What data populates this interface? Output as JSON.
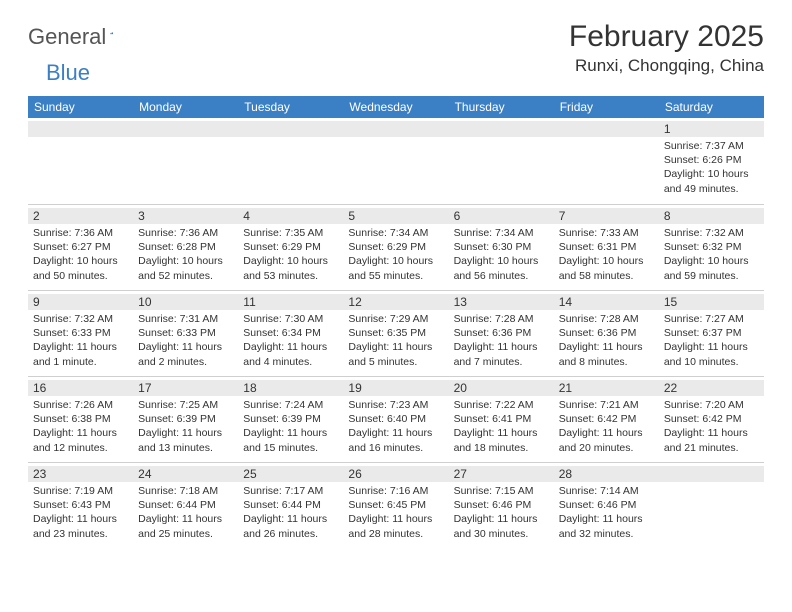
{
  "brand": {
    "name_gray": "General",
    "name_blue": "Blue"
  },
  "title": "February 2025",
  "location": "Runxi, Chongqing, China",
  "colors": {
    "header_bg": "#3b7fc4",
    "header_text": "#ffffff",
    "daynum_bg": "#eaeaea",
    "rule": "#cfcfcf",
    "body_text": "#333333",
    "page_bg": "#ffffff"
  },
  "day_names": [
    "Sunday",
    "Monday",
    "Tuesday",
    "Wednesday",
    "Thursday",
    "Friday",
    "Saturday"
  ],
  "weeks": [
    [
      {
        "blank": true
      },
      {
        "blank": true
      },
      {
        "blank": true
      },
      {
        "blank": true
      },
      {
        "blank": true
      },
      {
        "blank": true
      },
      {
        "n": "1",
        "sunrise": "Sunrise: 7:37 AM",
        "sunset": "Sunset: 6:26 PM",
        "daylight": "Daylight: 10 hours and 49 minutes."
      }
    ],
    [
      {
        "n": "2",
        "sunrise": "Sunrise: 7:36 AM",
        "sunset": "Sunset: 6:27 PM",
        "daylight": "Daylight: 10 hours and 50 minutes."
      },
      {
        "n": "3",
        "sunrise": "Sunrise: 7:36 AM",
        "sunset": "Sunset: 6:28 PM",
        "daylight": "Daylight: 10 hours and 52 minutes."
      },
      {
        "n": "4",
        "sunrise": "Sunrise: 7:35 AM",
        "sunset": "Sunset: 6:29 PM",
        "daylight": "Daylight: 10 hours and 53 minutes."
      },
      {
        "n": "5",
        "sunrise": "Sunrise: 7:34 AM",
        "sunset": "Sunset: 6:29 PM",
        "daylight": "Daylight: 10 hours and 55 minutes."
      },
      {
        "n": "6",
        "sunrise": "Sunrise: 7:34 AM",
        "sunset": "Sunset: 6:30 PM",
        "daylight": "Daylight: 10 hours and 56 minutes."
      },
      {
        "n": "7",
        "sunrise": "Sunrise: 7:33 AM",
        "sunset": "Sunset: 6:31 PM",
        "daylight": "Daylight: 10 hours and 58 minutes."
      },
      {
        "n": "8",
        "sunrise": "Sunrise: 7:32 AM",
        "sunset": "Sunset: 6:32 PM",
        "daylight": "Daylight: 10 hours and 59 minutes."
      }
    ],
    [
      {
        "n": "9",
        "sunrise": "Sunrise: 7:32 AM",
        "sunset": "Sunset: 6:33 PM",
        "daylight": "Daylight: 11 hours and 1 minute."
      },
      {
        "n": "10",
        "sunrise": "Sunrise: 7:31 AM",
        "sunset": "Sunset: 6:33 PM",
        "daylight": "Daylight: 11 hours and 2 minutes."
      },
      {
        "n": "11",
        "sunrise": "Sunrise: 7:30 AM",
        "sunset": "Sunset: 6:34 PM",
        "daylight": "Daylight: 11 hours and 4 minutes."
      },
      {
        "n": "12",
        "sunrise": "Sunrise: 7:29 AM",
        "sunset": "Sunset: 6:35 PM",
        "daylight": "Daylight: 11 hours and 5 minutes."
      },
      {
        "n": "13",
        "sunrise": "Sunrise: 7:28 AM",
        "sunset": "Sunset: 6:36 PM",
        "daylight": "Daylight: 11 hours and 7 minutes."
      },
      {
        "n": "14",
        "sunrise": "Sunrise: 7:28 AM",
        "sunset": "Sunset: 6:36 PM",
        "daylight": "Daylight: 11 hours and 8 minutes."
      },
      {
        "n": "15",
        "sunrise": "Sunrise: 7:27 AM",
        "sunset": "Sunset: 6:37 PM",
        "daylight": "Daylight: 11 hours and 10 minutes."
      }
    ],
    [
      {
        "n": "16",
        "sunrise": "Sunrise: 7:26 AM",
        "sunset": "Sunset: 6:38 PM",
        "daylight": "Daylight: 11 hours and 12 minutes."
      },
      {
        "n": "17",
        "sunrise": "Sunrise: 7:25 AM",
        "sunset": "Sunset: 6:39 PM",
        "daylight": "Daylight: 11 hours and 13 minutes."
      },
      {
        "n": "18",
        "sunrise": "Sunrise: 7:24 AM",
        "sunset": "Sunset: 6:39 PM",
        "daylight": "Daylight: 11 hours and 15 minutes."
      },
      {
        "n": "19",
        "sunrise": "Sunrise: 7:23 AM",
        "sunset": "Sunset: 6:40 PM",
        "daylight": "Daylight: 11 hours and 16 minutes."
      },
      {
        "n": "20",
        "sunrise": "Sunrise: 7:22 AM",
        "sunset": "Sunset: 6:41 PM",
        "daylight": "Daylight: 11 hours and 18 minutes."
      },
      {
        "n": "21",
        "sunrise": "Sunrise: 7:21 AM",
        "sunset": "Sunset: 6:42 PM",
        "daylight": "Daylight: 11 hours and 20 minutes."
      },
      {
        "n": "22",
        "sunrise": "Sunrise: 7:20 AM",
        "sunset": "Sunset: 6:42 PM",
        "daylight": "Daylight: 11 hours and 21 minutes."
      }
    ],
    [
      {
        "n": "23",
        "sunrise": "Sunrise: 7:19 AM",
        "sunset": "Sunset: 6:43 PM",
        "daylight": "Daylight: 11 hours and 23 minutes."
      },
      {
        "n": "24",
        "sunrise": "Sunrise: 7:18 AM",
        "sunset": "Sunset: 6:44 PM",
        "daylight": "Daylight: 11 hours and 25 minutes."
      },
      {
        "n": "25",
        "sunrise": "Sunrise: 7:17 AM",
        "sunset": "Sunset: 6:44 PM",
        "daylight": "Daylight: 11 hours and 26 minutes."
      },
      {
        "n": "26",
        "sunrise": "Sunrise: 7:16 AM",
        "sunset": "Sunset: 6:45 PM",
        "daylight": "Daylight: 11 hours and 28 minutes."
      },
      {
        "n": "27",
        "sunrise": "Sunrise: 7:15 AM",
        "sunset": "Sunset: 6:46 PM",
        "daylight": "Daylight: 11 hours and 30 minutes."
      },
      {
        "n": "28",
        "sunrise": "Sunrise: 7:14 AM",
        "sunset": "Sunset: 6:46 PM",
        "daylight": "Daylight: 11 hours and 32 minutes."
      },
      {
        "blank": true
      }
    ]
  ]
}
